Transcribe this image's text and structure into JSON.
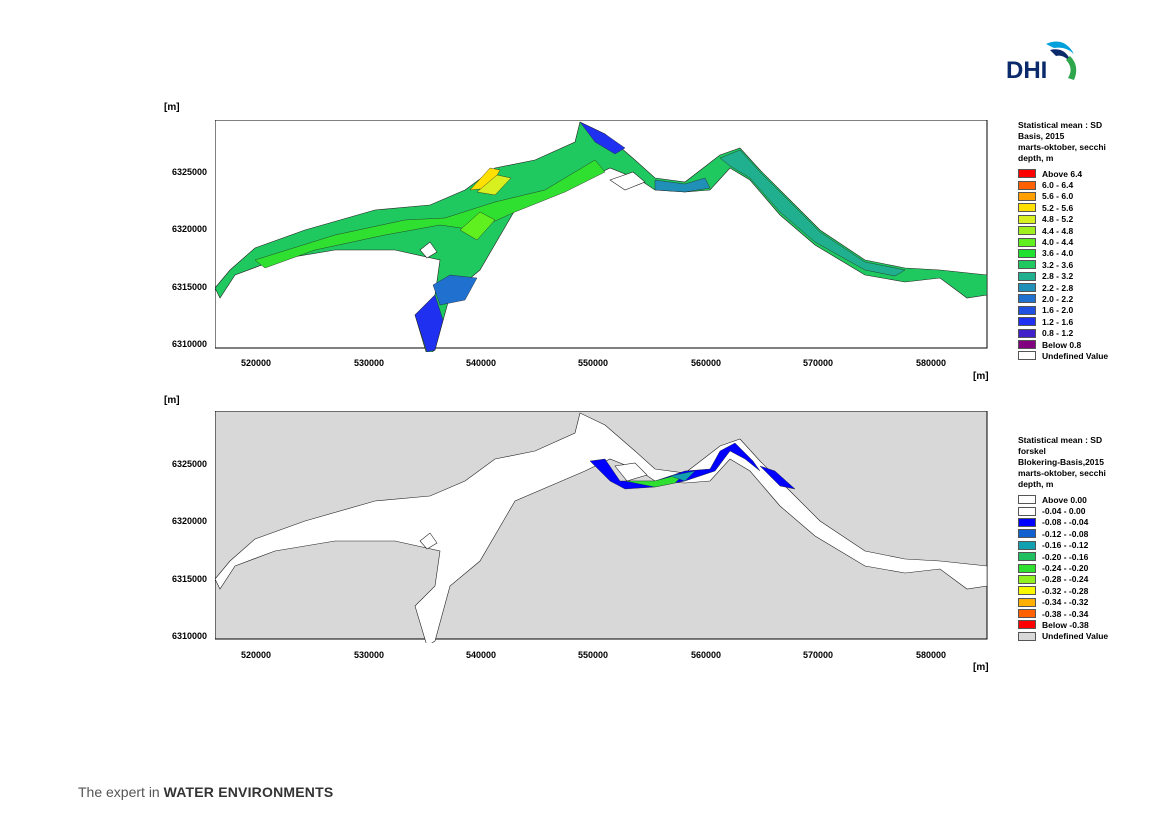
{
  "logo": {
    "text": "DHI",
    "colors": [
      "#00a0dc",
      "#0a2a6b",
      "#2ea64b"
    ]
  },
  "footer": {
    "prefix": "The expert in ",
    "emphasis": "WATER ENVIRONMENTS"
  },
  "maps": [
    {
      "unit_y": "[m]",
      "unit_x": "[m]",
      "y_ticks": [
        "6325000",
        "6320000",
        "6315000",
        "6310000"
      ],
      "x_ticks": [
        "520000",
        "530000",
        "540000",
        "550000",
        "560000",
        "570000",
        "580000"
      ],
      "legend_title": [
        "Statistical mean : SD",
        "Basis, 2015",
        "marts-oktober, secchi",
        "depth, m"
      ],
      "legend": [
        {
          "label": "Above 6.4",
          "color": "#ff0000"
        },
        {
          "label": "6.0 - 6.4",
          "color": "#ff6000"
        },
        {
          "label": "5.6 - 6.0",
          "color": "#ffa000"
        },
        {
          "label": "5.2 - 5.6",
          "color": "#ffe000"
        },
        {
          "label": "4.8 - 5.2",
          "color": "#d8f020"
        },
        {
          "label": "4.4 - 4.8",
          "color": "#a0f020"
        },
        {
          "label": "4.0 - 4.4",
          "color": "#60f020"
        },
        {
          "label": "3.6 - 4.0",
          "color": "#20e030"
        },
        {
          "label": "3.2 - 3.6",
          "color": "#20c860"
        },
        {
          "label": "2.8 - 3.2",
          "color": "#20b090"
        },
        {
          "label": "2.2 - 2.8",
          "color": "#2090b8"
        },
        {
          "label": "2.0 - 2.2",
          "color": "#2070d0"
        },
        {
          "label": "1.6 - 2.0",
          "color": "#2050e0"
        },
        {
          "label": "1.2 - 1.6",
          "color": "#2030f0"
        },
        {
          "label": "0.8 - 1.2",
          "color": "#4020c8"
        },
        {
          "label": "Below 0.8",
          "color": "#800080"
        },
        {
          "label": "Undefined Value",
          "color": "#ffffff"
        }
      ]
    },
    {
      "unit_y": "[m]",
      "unit_x": "[m]",
      "y_ticks": [
        "6325000",
        "6320000",
        "6315000",
        "6310000"
      ],
      "x_ticks": [
        "520000",
        "530000",
        "540000",
        "550000",
        "560000",
        "570000",
        "580000"
      ],
      "legend_title": [
        "Statistical mean : SD",
        "forskel",
        "Blokering-Basis,2015",
        "marts-oktober, secchi",
        "depth, m"
      ],
      "legend": [
        {
          "label": "Above  0.00",
          "color": "#ffffff"
        },
        {
          "label": "-0.04 -  0.00",
          "color": "#ffffff"
        },
        {
          "label": "-0.08 - -0.04",
          "color": "#0000ff"
        },
        {
          "label": "-0.12 - -0.08",
          "color": "#1060d0"
        },
        {
          "label": "-0.16 - -0.12",
          "color": "#10a0b0"
        },
        {
          "label": "-0.20 - -0.16",
          "color": "#20c060"
        },
        {
          "label": "-0.24 - -0.20",
          "color": "#30e030"
        },
        {
          "label": "-0.28 - -0.24",
          "color": "#90f020"
        },
        {
          "label": "-0.32 - -0.28",
          "color": "#f8f800"
        },
        {
          "label": "-0.34 - -0.32",
          "color": "#ffb000"
        },
        {
          "label": "-0.38 - -0.34",
          "color": "#ff6000"
        },
        {
          "label": "Below -0.38",
          "color": "#ff0000"
        },
        {
          "label": "Undefined Value",
          "color": "#d8d8d8"
        }
      ]
    }
  ]
}
